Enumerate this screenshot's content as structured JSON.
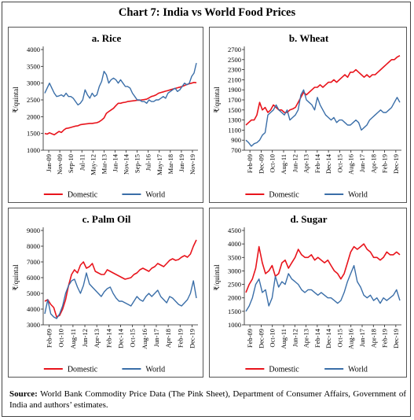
{
  "title": "Chart 7: India vs World Food Prices",
  "source_label": "Source:",
  "source_text": "World Bank Commodity Price Data (The Pink Sheet), Department of Consumer Affairs, Government of India and authors’ estimates.",
  "colors": {
    "domestic": "#e8141c",
    "world": "#3a6ea8",
    "axis": "#222",
    "grid": "#ddd"
  },
  "chart_data": [
    {
      "type": "line",
      "title": "a. Rice",
      "ylabel": "₹/quintal",
      "ylim": [
        1000,
        4000
      ],
      "yticks": [
        1000,
        1500,
        2000,
        2500,
        3000,
        3500,
        4000
      ],
      "xticks": [
        "Jan-09",
        "Nov-09",
        "Sep-10",
        "Jul-11",
        "May-12",
        "Mar-13",
        "Jan-14",
        "Nov-14",
        "Sep-15",
        "Jul-16",
        "May-17",
        "Mar-18",
        "Jan-19",
        "Nov-19"
      ],
      "legend": [
        "Domestic",
        "World"
      ],
      "series": [
        {
          "name": "Domestic",
          "values": [
            1500,
            1480,
            1520,
            1490,
            1460,
            1510,
            1560,
            1530,
            1600,
            1650,
            1660,
            1680,
            1700,
            1720,
            1730,
            1760,
            1770,
            1780,
            1790,
            1800,
            1800,
            1810,
            1820,
            1850,
            1900,
            1960,
            2100,
            2150,
            2200,
            2250,
            2330,
            2400,
            2400,
            2420,
            2430,
            2450,
            2460,
            2470,
            2480,
            2490,
            2490,
            2500,
            2510,
            2520,
            2560,
            2600,
            2620,
            2650,
            2700,
            2720,
            2740,
            2760,
            2780,
            2800,
            2820,
            2840,
            2860,
            2880,
            2900,
            2930,
            2960,
            2980,
            3000,
            3020,
            3010
          ]
        },
        {
          "name": "World",
          "values": [
            2700,
            2850,
            3000,
            2850,
            2700,
            2600,
            2620,
            2650,
            2600,
            2700,
            2600,
            2600,
            2550,
            2450,
            2350,
            2400,
            2500,
            2800,
            2650,
            2550,
            2700,
            2600,
            2650,
            2900,
            3050,
            3350,
            3250,
            3000,
            3100,
            3150,
            3100,
            3000,
            3100,
            3000,
            2900,
            2900,
            2850,
            2700,
            2600,
            2500,
            2500,
            2450,
            2450,
            2400,
            2500,
            2450,
            2450,
            2500,
            2500,
            2550,
            2600,
            2550,
            2700,
            2750,
            2800,
            2850,
            2750,
            2800,
            2900,
            3000,
            2950,
            3000,
            3200,
            3300,
            3600
          ]
        }
      ]
    },
    {
      "type": "line",
      "title": "b. Wheat",
      "ylabel": "₹/quintal",
      "ylim": [
        700,
        2700
      ],
      "yticks": [
        700,
        900,
        1100,
        1300,
        1500,
        1700,
        1900,
        2100,
        2300,
        2500,
        2700
      ],
      "xticks": [
        "Feb-09",
        "Dec-09",
        "Oct-10",
        "Aug-11",
        "Jun-12",
        "Apr-13",
        "Feb-14",
        "Dec-14",
        "Oct-15",
        "Aug-16",
        "Jun-17",
        "Apr-18",
        "Feb-19",
        "Dec-19"
      ],
      "legend": [
        "Domestic",
        "World"
      ],
      "series": [
        {
          "name": "Domestic",
          "values": [
            1200,
            1250,
            1300,
            1300,
            1400,
            1650,
            1500,
            1550,
            1450,
            1500,
            1600,
            1550,
            1500,
            1500,
            1450,
            1450,
            1500,
            1520,
            1550,
            1650,
            1750,
            1850,
            1800,
            1850,
            1900,
            1950,
            1950,
            2000,
            1950,
            2000,
            2050,
            2050,
            2100,
            2050,
            2100,
            2150,
            2200,
            2150,
            2250,
            2250,
            2300,
            2250,
            2200,
            2150,
            2200,
            2150,
            2200,
            2200,
            2250,
            2300,
            2350,
            2400,
            2450,
            2500,
            2500,
            2550,
            2580
          ]
        },
        {
          "name": "World",
          "values": [
            900,
            850,
            780,
            830,
            850,
            900,
            1000,
            1050,
            1400,
            1450,
            1500,
            1600,
            1500,
            1450,
            1400,
            1500,
            1300,
            1350,
            1400,
            1500,
            1800,
            1900,
            1700,
            1650,
            1600,
            1500,
            1750,
            1600,
            1500,
            1400,
            1350,
            1300,
            1350,
            1250,
            1300,
            1300,
            1250,
            1200,
            1200,
            1250,
            1300,
            1250,
            1100,
            1150,
            1200,
            1300,
            1350,
            1400,
            1450,
            1500,
            1450,
            1450,
            1500,
            1550,
            1650,
            1750,
            1650
          ]
        }
      ]
    },
    {
      "type": "line",
      "title": "c. Palm Oil",
      "ylabel": "₹/quintal",
      "ylim": [
        3000,
        9000
      ],
      "yticks": [
        3000,
        4000,
        5000,
        6000,
        7000,
        8000,
        9000
      ],
      "xticks": [
        "Feb-09",
        "Oct-10",
        "Aug-11",
        "Jun-12",
        "Apr-13",
        "Feb-14",
        "Dec-14",
        "Oct-15",
        "Aug-16",
        "Jun-17",
        "Apr-18",
        "Feb-19",
        "Dec-19"
      ],
      "legend": [
        "Domestic",
        "World"
      ],
      "series": [
        {
          "name": "Domestic",
          "values": [
            4500,
            4600,
            4300,
            4100,
            3500,
            3600,
            4000,
            4600,
            5500,
            6200,
            6500,
            6300,
            6800,
            7000,
            6600,
            6700,
            6900,
            6400,
            6300,
            6200,
            6200,
            6500,
            6400,
            6300,
            6200,
            6100,
            6000,
            5900,
            5950,
            6000,
            6200,
            6300,
            6500,
            6600,
            6500,
            6400,
            6600,
            6700,
            6900,
            6800,
            6700,
            6900,
            7100,
            7200,
            7100,
            7150,
            7300,
            7400,
            7300,
            7500,
            8000,
            8400
          ]
        },
        {
          "name": "World",
          "values": [
            3700,
            4600,
            3700,
            3500,
            3400,
            3700,
            4200,
            5000,
            5500,
            5800,
            5900,
            5400,
            5000,
            5500,
            6300,
            5600,
            5400,
            5200,
            5000,
            4800,
            5100,
            5300,
            5400,
            5000,
            4700,
            4500,
            4500,
            4400,
            4300,
            4200,
            4500,
            4800,
            4600,
            4500,
            4800,
            5000,
            4800,
            5000,
            5200,
            4800,
            4600,
            4400,
            4800,
            4700,
            4500,
            4300,
            4200,
            4400,
            4600,
            5000,
            5800,
            4700
          ]
        }
      ]
    },
    {
      "type": "line",
      "title": "d. Sugar",
      "ylabel": "₹/quintal",
      "ylim": [
        1000,
        4500
      ],
      "yticks": [
        1000,
        1500,
        2000,
        2500,
        3000,
        3500,
        4000,
        4500
      ],
      "xticks": [
        "Feb-09",
        "Dec-09",
        "Oct-10",
        "Aug-11",
        "Jun-12",
        "Apr-13",
        "Feb-14",
        "Dec-14",
        "Oct-15",
        "Aug-16",
        "Jun-17",
        "Apr-18",
        "Feb-19",
        "Dec-19"
      ],
      "legend": [
        "Domestic",
        "World"
      ],
      "series": [
        {
          "name": "Domestic",
          "values": [
            2200,
            2500,
            2700,
            3100,
            3900,
            3300,
            2900,
            3000,
            3200,
            2800,
            2900,
            3300,
            3400,
            3100,
            3300,
            3500,
            3800,
            3600,
            3500,
            3500,
            3600,
            3400,
            3500,
            3400,
            3300,
            3400,
            3200,
            3000,
            2900,
            2700,
            2900,
            3300,
            3700,
            3900,
            3800,
            3900,
            4000,
            3800,
            3700,
            3500,
            3500,
            3400,
            3500,
            3700,
            3600,
            3600,
            3700,
            3600
          ]
        },
        {
          "name": "World",
          "values": [
            1500,
            1700,
            2000,
            2500,
            2700,
            2200,
            2300,
            1700,
            2000,
            2800,
            2400,
            2600,
            2500,
            2900,
            2700,
            2600,
            2500,
            2300,
            2200,
            2300,
            2300,
            2200,
            2100,
            2200,
            2100,
            2000,
            2000,
            1900,
            1800,
            1900,
            2200,
            2600,
            2900,
            3200,
            2600,
            2400,
            2100,
            2000,
            2100,
            1900,
            2000,
            1800,
            2000,
            1900,
            2000,
            2100,
            2300,
            1900
          ]
        }
      ]
    }
  ]
}
